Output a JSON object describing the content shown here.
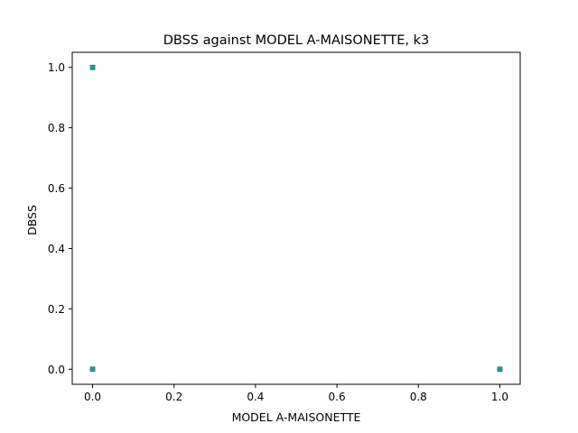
{
  "chart_data": {
    "type": "scatter",
    "title": "DBSS against MODEL A-MAISONETTE, k3",
    "xlabel": "MODEL A-MAISONETTE",
    "ylabel": "DBSS",
    "xlim": [
      -0.05,
      1.05
    ],
    "ylim": [
      -0.05,
      1.05
    ],
    "xticks": [
      0.0,
      0.2,
      0.4,
      0.6,
      0.8,
      1.0
    ],
    "yticks": [
      0.0,
      0.2,
      0.4,
      0.6,
      0.8,
      1.0
    ],
    "xtick_labels": [
      "0.0",
      "0.2",
      "0.4",
      "0.6",
      "0.8",
      "1.0"
    ],
    "ytick_labels": [
      "0.0",
      "0.2",
      "0.4",
      "0.6",
      "0.8",
      "1.0"
    ],
    "grid": false,
    "marker_color": "#1f9e89",
    "marker_edge_color": "#2a7872",
    "points": [
      {
        "x": 0.0,
        "y": 1.0
      },
      {
        "x": 0.0,
        "y": 0.0
      },
      {
        "x": 1.0,
        "y": 0.0
      }
    ]
  }
}
